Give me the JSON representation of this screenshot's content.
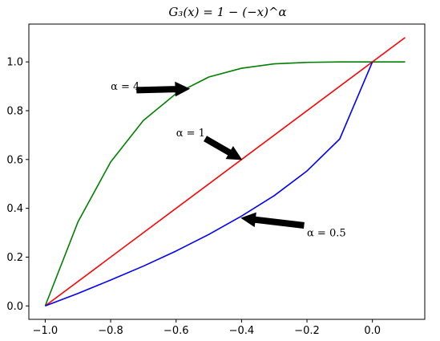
{
  "chart_data": {
    "type": "line",
    "title": "G₃(x) = 1 − (−x)^α",
    "xlabel": "",
    "ylabel": "",
    "xlim": [
      -1.05,
      0.16
    ],
    "ylim": [
      -0.055,
      1.155
    ],
    "grid": false,
    "xticks": [
      -1.0,
      -0.8,
      -0.6,
      -0.4,
      -0.2,
      0.0
    ],
    "xtick_labels": [
      "−1.0",
      "−0.8",
      "−0.6",
      "−0.4",
      "−0.2",
      "0.0"
    ],
    "yticks": [
      0.0,
      0.2,
      0.4,
      0.6,
      0.8,
      1.0
    ],
    "ytick_labels": [
      "0.0",
      "0.2",
      "0.4",
      "0.6",
      "0.8",
      "1.0"
    ],
    "series": [
      {
        "color": "#008000",
        "x": [
          -1.0,
          -0.9,
          -0.8,
          -0.7,
          -0.6,
          -0.5,
          -0.4,
          -0.3,
          -0.2,
          -0.1,
          0.0,
          0.1
        ],
        "y": [
          0.0,
          0.344,
          0.59,
          0.76,
          0.87,
          0.938,
          0.974,
          0.992,
          0.998,
          1.0,
          1.0,
          1.0
        ]
      },
      {
        "color": "#ff0000",
        "x": [
          -1.0,
          0.1
        ],
        "y": [
          0.0,
          1.1
        ]
      },
      {
        "color": "#0000ff",
        "x": [
          -1.0,
          -0.9,
          -0.8,
          -0.7,
          -0.6,
          -0.5,
          -0.4,
          -0.3,
          -0.2,
          -0.1,
          0.0
        ],
        "y": [
          0.0,
          0.051,
          0.106,
          0.163,
          0.225,
          0.293,
          0.368,
          0.452,
          0.553,
          0.684,
          1.0
        ]
      }
    ],
    "annotations": [
      {
        "label": "α = 4",
        "text_at": [
          -0.8,
          0.9
        ],
        "arrow_to": [
          -0.56,
          0.89
        ]
      },
      {
        "label": "α = 1",
        "text_at": [
          -0.6,
          0.71
        ],
        "arrow_to": [
          -0.4,
          0.6
        ]
      },
      {
        "label": "α = 0.5",
        "text_at": [
          -0.2,
          0.3
        ],
        "arrow_to": [
          -0.4,
          0.36
        ]
      }
    ]
  }
}
